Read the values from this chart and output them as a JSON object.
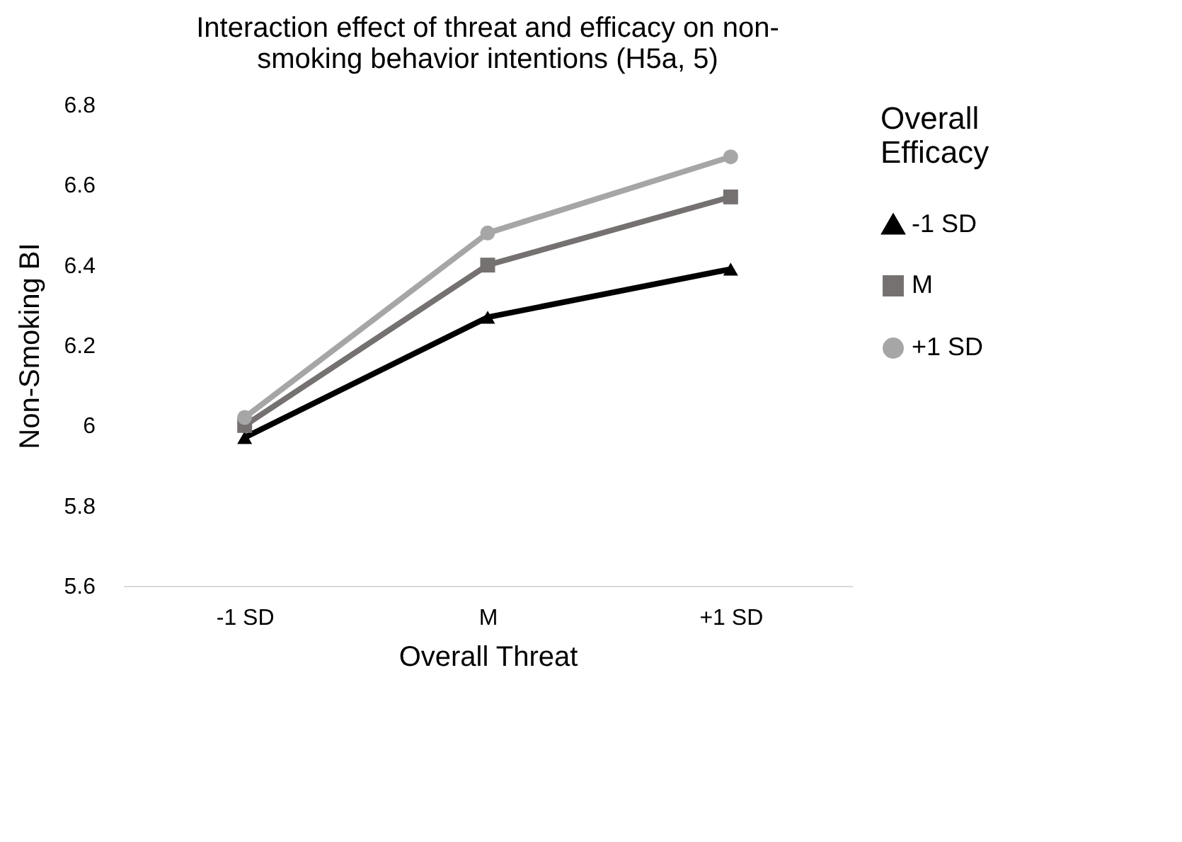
{
  "chart_data": {
    "type": "line",
    "title": "Interaction effect of threat and efficacy on non-smoking behavior intentions (H5a, 5)",
    "xlabel": "Overall Threat",
    "ylabel": "Non-Smoking BI",
    "legend_title": "Overall Efficacy",
    "categories": [
      "-1 SD",
      "M",
      "+1 SD"
    ],
    "series": [
      {
        "name": "-1 SD",
        "color": "#000000",
        "marker": "triangle",
        "values": [
          5.97,
          6.27,
          6.39
        ]
      },
      {
        "name": "M",
        "color": "#767171",
        "marker": "square",
        "values": [
          6.0,
          6.4,
          6.57
        ]
      },
      {
        "name": "+1 SD",
        "color": "#a6a6a6",
        "marker": "circle",
        "values": [
          6.02,
          6.48,
          6.67
        ]
      }
    ],
    "ylim": [
      5.6,
      6.8
    ],
    "yticks": [
      5.6,
      5.8,
      {
        "value": 6,
        "label": "6"
      },
      6.2,
      6.4,
      6.6,
      6.8
    ],
    "grid": false,
    "legend": "right",
    "line_style": "solid"
  }
}
